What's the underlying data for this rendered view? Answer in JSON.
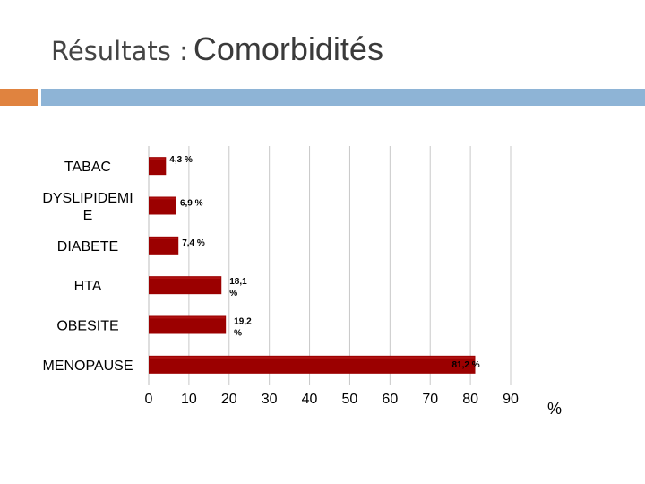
{
  "slide": {
    "title_part1": "Résultats :",
    "title_part2": "Comorbidités",
    "accent_colors": {
      "left_band": "#e0833f",
      "right_band": "#8eb4d6"
    }
  },
  "chart_data": {
    "type": "bar",
    "orientation": "horizontal",
    "categories": [
      {
        "lines": [
          "TABAC"
        ]
      },
      {
        "lines": [
          "DYSLIPIDEMI",
          "E"
        ]
      },
      {
        "lines": [
          "DIABETE"
        ]
      },
      {
        "lines": [
          "HTA"
        ]
      },
      {
        "lines": [
          "OBESITE"
        ]
      },
      {
        "lines": [
          "MENOPAUSE"
        ]
      }
    ],
    "values": [
      4.3,
      6.9,
      7.4,
      18.1,
      19.2,
      81.2
    ],
    "data_labels": [
      [
        "4,3 %"
      ],
      [
        "6,9 %"
      ],
      [
        "7,4 %"
      ],
      [
        "18,1",
        "%"
      ],
      [
        "19,2",
        "%"
      ],
      [
        "81,2 %"
      ]
    ],
    "x_ticks": [
      0,
      10,
      20,
      30,
      40,
      50,
      60,
      70,
      80,
      90
    ],
    "x_tick_labels": [
      "0",
      "10",
      "20",
      "30",
      "40",
      "50",
      "60",
      "70",
      "80",
      "90"
    ],
    "xlim": [
      0,
      90
    ],
    "x_unit_label": "%",
    "grid": true,
    "bar_color": "#9b0000"
  }
}
